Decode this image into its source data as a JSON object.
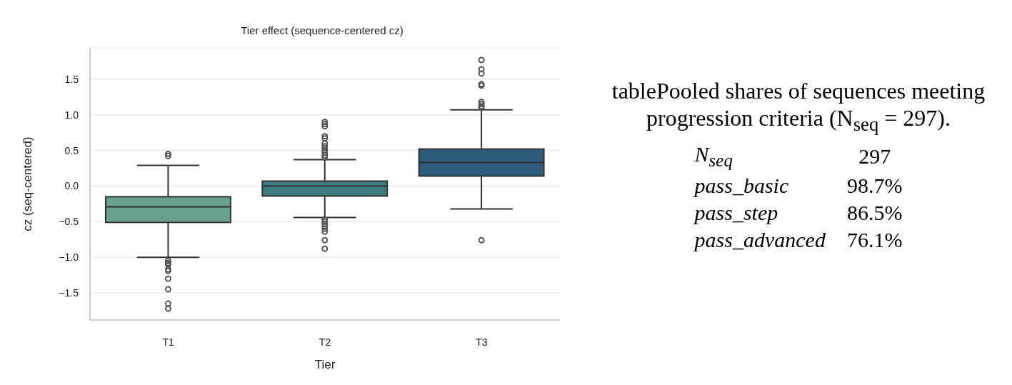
{
  "chart_data": [
    {
      "type": "box",
      "title": "Tier effect (sequence-centered cz)",
      "xlabel": "Tier",
      "ylabel": "cz (seq-centered)",
      "categories": [
        "T1",
        "T2",
        "T3"
      ],
      "colors": [
        "#69a38d",
        "#3c7b80",
        "#2c5b7c"
      ],
      "boxes": [
        {
          "low": -1.0,
          "q1": -0.51,
          "median": -0.29,
          "q3": -0.15,
          "high": 0.29,
          "outliers": [
            0.45,
            0.42,
            -1.05,
            -1.08,
            -1.1,
            -1.17,
            -1.19,
            -1.3,
            -1.45,
            -1.65,
            -1.72
          ]
        },
        {
          "low": -0.44,
          "q1": -0.14,
          "median": 0.0,
          "q3": 0.07,
          "high": 0.37,
          "outliers": [
            0.9,
            0.87,
            0.84,
            0.7,
            0.67,
            0.6,
            0.56,
            0.53,
            0.5,
            0.47,
            0.43,
            0.4,
            -0.47,
            -0.5,
            -0.53,
            -0.56,
            -0.6,
            -0.64,
            -0.76,
            -0.88
          ]
        },
        {
          "low": -0.32,
          "q1": 0.14,
          "median": 0.33,
          "q3": 0.52,
          "high": 1.07,
          "outliers": [
            1.77,
            1.64,
            1.58,
            1.43,
            1.41,
            1.18,
            1.15,
            1.12,
            1.1,
            -0.76
          ]
        }
      ],
      "ylim": [
        -1.88,
        1.94
      ],
      "yticks": [
        {
          "value": -1.5,
          "label": "−1.5"
        },
        {
          "value": -1,
          "label": "−1.0"
        },
        {
          "value": -0.5,
          "label": "−0.5"
        },
        {
          "value": 0,
          "label": "0.0"
        },
        0.5,
        {
          "value": 1,
          "label": "1.0"
        },
        1.5
      ],
      "grid": "y"
    },
    {
      "type": "other",
      "title": "tablePooled shares of sequences meeting progression criteria (N$_{seq}$ = 297).",
      "categories": [
        "N$_{seq}$",
        "pass_basic",
        "pass_step",
        "pass_advanced"
      ],
      "value_labels": [
        "297",
        "98.7%",
        "86.5%",
        "76.1%"
      ]
    }
  ]
}
